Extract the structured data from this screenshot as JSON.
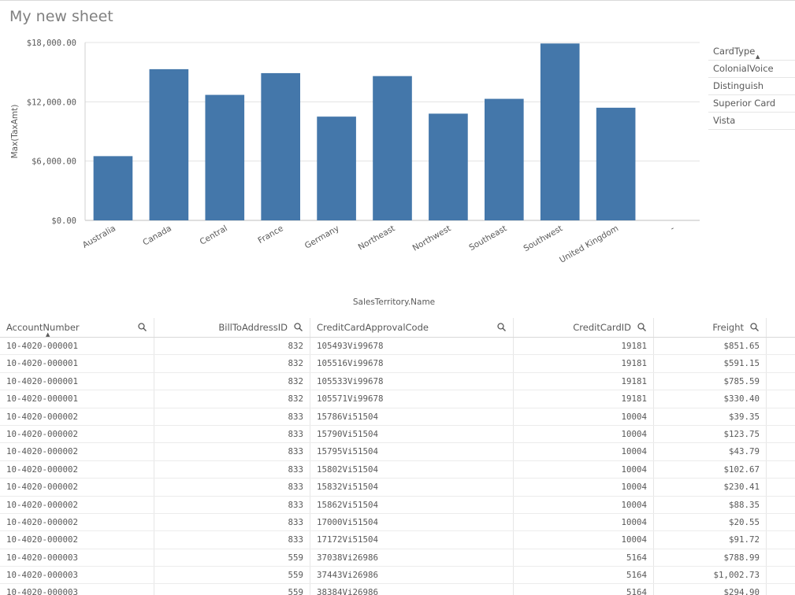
{
  "sheet": {
    "title": "My new sheet"
  },
  "chart_data": {
    "type": "bar",
    "categories": [
      "Australia",
      "Canada",
      "Central",
      "France",
      "Germany",
      "Northeast",
      "Northwest",
      "Southeast",
      "Southwest",
      "United Kingdom",
      "-"
    ],
    "values": [
      6500,
      15300,
      12700,
      14900,
      10500,
      14600,
      10800,
      12300,
      17900,
      11400,
      null
    ],
    "ylabel": "Max(TaxAmt)",
    "xlabel": "SalesTerritory.Name",
    "yticks": [
      "$0.00",
      "$6,000.00",
      "$12,000.00",
      "$18,000.00"
    ],
    "ytick_values": [
      0,
      6000,
      12000,
      18000
    ],
    "ylim": [
      0,
      18000
    ],
    "bar_color": "#4477aa",
    "grid": true
  },
  "legend": {
    "title": "CardType",
    "items": [
      "ColonialVoice",
      "Distinguish",
      "Superior Card",
      "Vista"
    ]
  },
  "table": {
    "columns": [
      "AccountNumber",
      "BillToAddressID",
      "CreditCardApprovalCode",
      "CreditCardID",
      "Freight"
    ],
    "rows": [
      [
        "10-4020-000001",
        "832",
        "105493Vi99678",
        "19181",
        "$851.65"
      ],
      [
        "10-4020-000001",
        "832",
        "105516Vi99678",
        "19181",
        "$591.15"
      ],
      [
        "10-4020-000001",
        "832",
        "105533Vi99678",
        "19181",
        "$785.59"
      ],
      [
        "10-4020-000001",
        "832",
        "105571Vi99678",
        "19181",
        "$330.40"
      ],
      [
        "10-4020-000002",
        "833",
        "15786Vi51504",
        "10004",
        "$39.35"
      ],
      [
        "10-4020-000002",
        "833",
        "15790Vi51504",
        "10004",
        "$123.75"
      ],
      [
        "10-4020-000002",
        "833",
        "15795Vi51504",
        "10004",
        "$43.79"
      ],
      [
        "10-4020-000002",
        "833",
        "15802Vi51504",
        "10004",
        "$102.67"
      ],
      [
        "10-4020-000002",
        "833",
        "15832Vi51504",
        "10004",
        "$230.41"
      ],
      [
        "10-4020-000002",
        "833",
        "15862Vi51504",
        "10004",
        "$88.35"
      ],
      [
        "10-4020-000002",
        "833",
        "17000Vi51504",
        "10004",
        "$20.55"
      ],
      [
        "10-4020-000002",
        "833",
        "17172Vi51504",
        "10004",
        "$91.72"
      ],
      [
        "10-4020-000003",
        "559",
        "37038Vi26986",
        "5164",
        "$788.99"
      ],
      [
        "10-4020-000003",
        "559",
        "37443Vi26986",
        "5164",
        "$1,002.73"
      ],
      [
        "10-4020-000003",
        "559",
        "38384Vi26986",
        "5164",
        "$294.90"
      ]
    ]
  }
}
